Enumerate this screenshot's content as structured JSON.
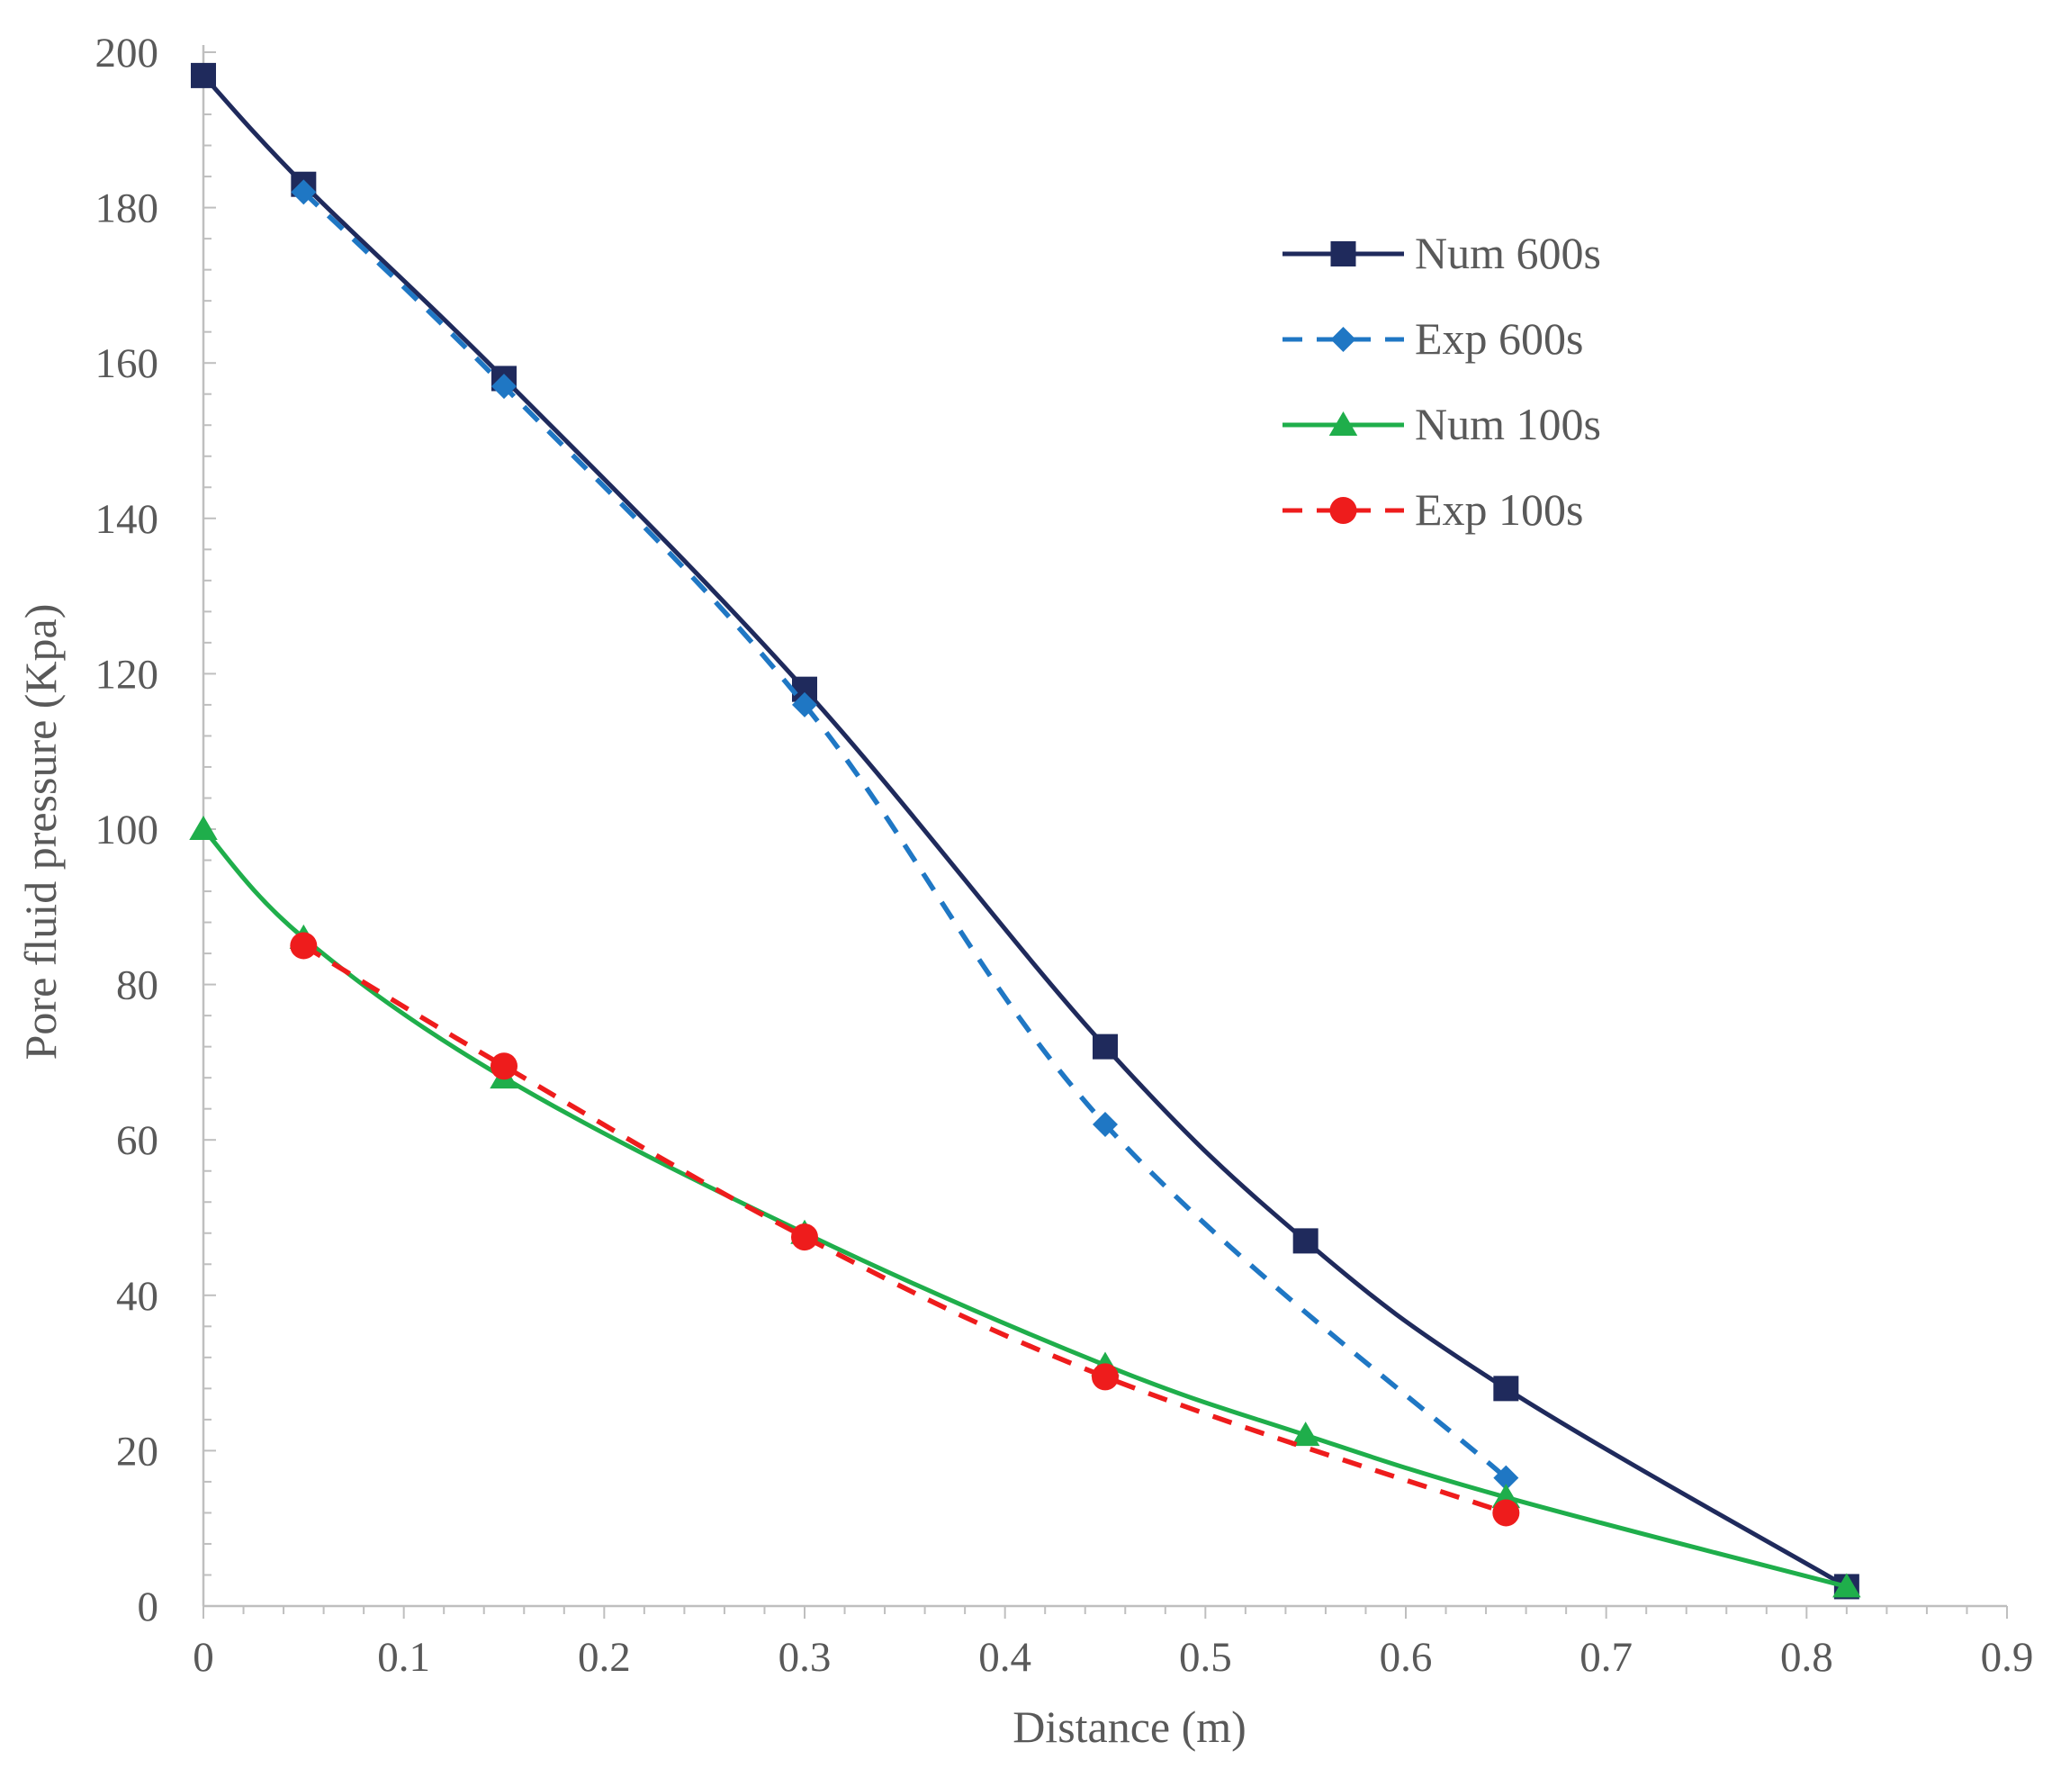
{
  "chart_data": {
    "type": "line",
    "title": "",
    "xlabel": "Distance (m)",
    "ylabel": "Pore fluid pressure (Kpa)",
    "xlim": [
      0,
      0.9
    ],
    "ylim": [
      0,
      200
    ],
    "xticks": [
      0,
      0.1,
      0.2,
      0.3,
      0.4,
      0.5,
      0.6,
      0.7,
      0.8,
      0.9
    ],
    "yticks": [
      0,
      20,
      40,
      60,
      80,
      100,
      120,
      140,
      160,
      180,
      200
    ],
    "xtick_labels": [
      "0",
      "0.1",
      "0.2",
      "0.3",
      "0.4",
      "0.5",
      "0.6",
      "0.7",
      "0.8",
      "0.9"
    ],
    "ytick_labels": [
      "0",
      "20",
      "40",
      "60",
      "80",
      "100",
      "120",
      "140",
      "160",
      "180",
      "200"
    ],
    "grid": false,
    "legend_position": "top-right",
    "series": [
      {
        "name": "Num 600s",
        "color": "#1f2a5c",
        "line_style": "solid",
        "marker": "square",
        "smooth": true,
        "x": [
          0,
          0.05,
          0.15,
          0.3,
          0.45,
          0.55,
          0.65,
          0.82
        ],
        "y": [
          197,
          183,
          158,
          118,
          72,
          47,
          28,
          2.5
        ]
      },
      {
        "name": "Exp 600s",
        "color": "#1f77c4",
        "line_style": "dashed",
        "marker": "diamond",
        "smooth": true,
        "x": [
          0.05,
          0.15,
          0.3,
          0.45,
          0.65
        ],
        "y": [
          182,
          157,
          116,
          62,
          16.5
        ]
      },
      {
        "name": "Num 100s",
        "color": "#1fae4b",
        "line_style": "solid",
        "marker": "triangle",
        "smooth": true,
        "x": [
          0,
          0.05,
          0.15,
          0.3,
          0.45,
          0.55,
          0.65,
          0.82
        ],
        "y": [
          100,
          86,
          68,
          48,
          31,
          22,
          14,
          2.5
        ]
      },
      {
        "name": "Exp 100s",
        "color": "#ee1c1c",
        "line_style": "dashed",
        "marker": "circle",
        "smooth": true,
        "x": [
          0.05,
          0.15,
          0.3,
          0.45,
          0.65
        ],
        "y": [
          85,
          69.5,
          47.5,
          29.5,
          12
        ]
      }
    ]
  }
}
